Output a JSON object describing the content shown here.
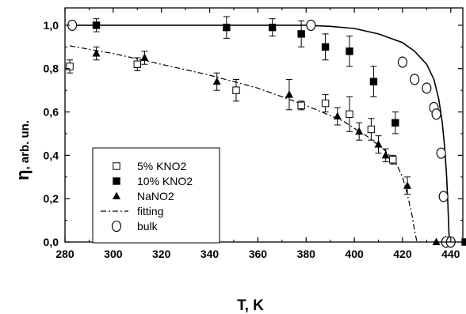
{
  "chart_data": {
    "type": "scatter",
    "xlabel": "T, K",
    "ylabel_symbol": "η",
    "ylabel_unit": ", arb. un.",
    "xlim": [
      280,
      445
    ],
    "ylim": [
      0,
      1.08
    ],
    "x_ticks": [
      "280",
      "300",
      "320",
      "340",
      "360",
      "380",
      "400",
      "420",
      "440"
    ],
    "y_ticks": [
      "0,0",
      "0,2",
      "0,4",
      "0,6",
      "0,8",
      "1,0"
    ],
    "grid": false,
    "legend_position": "lower-left",
    "series": [
      {
        "name": "5% KNO2",
        "marker": "open-square",
        "points": [
          {
            "x": 282,
            "y": 0.81,
            "err": 0.03
          },
          {
            "x": 310,
            "y": 0.82,
            "err": 0.03
          },
          {
            "x": 351,
            "y": 0.7,
            "err": 0.05
          },
          {
            "x": 378,
            "y": 0.63,
            "err": 0.02
          },
          {
            "x": 388,
            "y": 0.64,
            "err": 0.04
          },
          {
            "x": 398,
            "y": 0.59,
            "err": 0.08
          },
          {
            "x": 407,
            "y": 0.52,
            "err": 0.05
          },
          {
            "x": 416,
            "y": 0.38,
            "err": 0.02
          }
        ]
      },
      {
        "name": "10% KNO2",
        "marker": "filled-square",
        "points": [
          {
            "x": 293,
            "y": 1.0,
            "err": 0.03
          },
          {
            "x": 347,
            "y": 0.99,
            "err": 0.05
          },
          {
            "x": 366,
            "y": 0.99,
            "err": 0.04
          },
          {
            "x": 378,
            "y": 0.96,
            "err": 0.06
          },
          {
            "x": 388,
            "y": 0.9,
            "err": 0.06
          },
          {
            "x": 398,
            "y": 0.88,
            "err": 0.07
          },
          {
            "x": 408,
            "y": 0.74,
            "err": 0.07
          },
          {
            "x": 417,
            "y": 0.55,
            "err": 0.05
          },
          {
            "x": 446,
            "y": 0.0,
            "err": 0.0
          }
        ]
      },
      {
        "name": "NaNO2",
        "marker": "filled-triangle",
        "points": [
          {
            "x": 293,
            "y": 0.87,
            "err": 0.03
          },
          {
            "x": 313,
            "y": 0.85,
            "err": 0.03
          },
          {
            "x": 343,
            "y": 0.74,
            "err": 0.04
          },
          {
            "x": 373,
            "y": 0.68,
            "err": 0.07
          },
          {
            "x": 393,
            "y": 0.58,
            "err": 0.04
          },
          {
            "x": 402,
            "y": 0.51,
            "err": 0.04
          },
          {
            "x": 410,
            "y": 0.45,
            "err": 0.04
          },
          {
            "x": 413,
            "y": 0.4,
            "err": 0.03
          },
          {
            "x": 422,
            "y": 0.26,
            "err": 0.04
          },
          {
            "x": 434,
            "y": 0.0,
            "err": 0.0
          }
        ]
      },
      {
        "name": "bulk",
        "marker": "open-circle",
        "points": [
          {
            "x": 283,
            "y": 1.0
          },
          {
            "x": 382,
            "y": 1.0
          },
          {
            "x": 420,
            "y": 0.83
          },
          {
            "x": 425,
            "y": 0.75
          },
          {
            "x": 430,
            "y": 0.71
          },
          {
            "x": 433,
            "y": 0.62
          },
          {
            "x": 434,
            "y": 0.59
          },
          {
            "x": 436,
            "y": 0.41
          },
          {
            "x": 437,
            "y": 0.21
          },
          {
            "x": 438,
            "y": 0.0
          },
          {
            "x": 440,
            "y": 0.0
          }
        ]
      }
    ],
    "curves": [
      {
        "name": "fitting",
        "style": "dash-dot",
        "points": [
          [
            282,
            0.905
          ],
          [
            300,
            0.87
          ],
          [
            320,
            0.82
          ],
          [
            340,
            0.77
          ],
          [
            360,
            0.71
          ],
          [
            380,
            0.63
          ],
          [
            395,
            0.56
          ],
          [
            405,
            0.49
          ],
          [
            412,
            0.43
          ],
          [
            417,
            0.37
          ],
          [
            420,
            0.3
          ],
          [
            422,
            0.22
          ],
          [
            424,
            0.12
          ],
          [
            425,
            0.05
          ],
          [
            426,
            0.0
          ]
        ]
      },
      {
        "name": "bulk-solid",
        "style": "solid",
        "points": [
          [
            282,
            1.0
          ],
          [
            380,
            1.0
          ],
          [
            390,
            0.995
          ],
          [
            400,
            0.985
          ],
          [
            410,
            0.96
          ],
          [
            420,
            0.92
          ],
          [
            425,
            0.88
          ],
          [
            430,
            0.82
          ],
          [
            433,
            0.75
          ],
          [
            435,
            0.66
          ],
          [
            436.5,
            0.55
          ],
          [
            437.5,
            0.43
          ],
          [
            438.3,
            0.3
          ],
          [
            438.8,
            0.18
          ],
          [
            439.2,
            0.05
          ],
          [
            439.4,
            0.0
          ]
        ]
      }
    ],
    "legend": [
      {
        "label": "5% KNO2",
        "marker": "open-square"
      },
      {
        "label": "10% KNO2",
        "marker": "filled-square"
      },
      {
        "label": "NaNO2",
        "marker": "filled-triangle"
      },
      {
        "label": "fitting",
        "marker": "dash-dot-line"
      },
      {
        "label": "bulk",
        "marker": "open-circle"
      }
    ]
  }
}
